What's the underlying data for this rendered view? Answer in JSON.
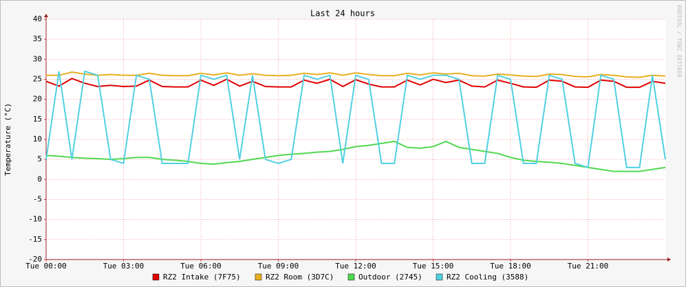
{
  "chart_data": {
    "type": "line",
    "title": "Last 24 hours",
    "y_label": "Temperature (°C)",
    "watermark": "RRDTOOL / TOBI OETIKER",
    "x": [
      0,
      0.5,
      1,
      1.5,
      2,
      2.5,
      3,
      3.5,
      4,
      4.5,
      5,
      5.5,
      6,
      6.5,
      7,
      7.5,
      8,
      8.5,
      9,
      9.5,
      10,
      10.5,
      11,
      11.5,
      12,
      12.5,
      13,
      13.5,
      14,
      14.5,
      15,
      15.5,
      16,
      16.5,
      17,
      17.5,
      18,
      18.5,
      19,
      19.5,
      20,
      20.5,
      21,
      21.5,
      22,
      22.5,
      23,
      23.5,
      24
    ],
    "xlim": [
      0,
      24
    ],
    "xticks": [
      {
        "value": 0,
        "label": "Tue 00:00"
      },
      {
        "value": 3,
        "label": "Tue 03:00"
      },
      {
        "value": 6,
        "label": "Tue 06:00"
      },
      {
        "value": 9,
        "label": "Tue 09:00"
      },
      {
        "value": 12,
        "label": "Tue 12:00"
      },
      {
        "value": 15,
        "label": "Tue 15:00"
      },
      {
        "value": 18,
        "label": "Tue 18:00"
      },
      {
        "value": 21,
        "label": "Tue 21:00"
      }
    ],
    "ylim": [
      -20,
      40
    ],
    "yticks": [
      -20,
      -15,
      -10,
      -5,
      0,
      5,
      10,
      15,
      20,
      25,
      30,
      35,
      40
    ],
    "grid": true,
    "series": [
      {
        "name": "RZ2 Intake (7F75)",
        "color": "#e00000",
        "values": [
          24.5,
          23.3,
          25.2,
          24,
          23.2,
          23.5,
          23.2,
          23.3,
          24.8,
          23.2,
          23.1,
          23.1,
          24.8,
          23.5,
          25,
          23.3,
          24.5,
          23.2,
          23.1,
          23.1,
          24.8,
          24,
          25,
          23.2,
          24.9,
          23.8,
          23.1,
          23.1,
          24.8,
          23.6,
          25,
          24.2,
          24.8,
          23.3,
          23.1,
          24.8,
          24,
          23.1,
          23,
          24.8,
          24.5,
          23.1,
          23,
          24.8,
          24.5,
          23,
          23,
          24.5,
          24
        ]
      },
      {
        "name": "RZ2 Room (3D7C)",
        "color": "#e8b020",
        "values": [
          26,
          26,
          26.8,
          26.3,
          26,
          26.2,
          26,
          26,
          26.5,
          26,
          25.9,
          25.9,
          26.5,
          26.1,
          26.6,
          26,
          26.4,
          26,
          25.9,
          26,
          26.5,
          26.2,
          26.6,
          26,
          26.6,
          26.2,
          25.9,
          25.9,
          26.5,
          26.1,
          26.6,
          26.3,
          26.5,
          25.9,
          25.8,
          26.3,
          26.1,
          25.8,
          25.7,
          26.3,
          26.2,
          25.7,
          25.6,
          26.2,
          26,
          25.6,
          25.5,
          26,
          25.8
        ]
      },
      {
        "name": "Outdoor (2745)",
        "color": "#50d850",
        "values": [
          6,
          5.8,
          5.5,
          5.3,
          5.2,
          5,
          5.2,
          5.5,
          5.5,
          5,
          4.8,
          4.5,
          4,
          3.8,
          4.2,
          4.5,
          5,
          5.5,
          6,
          6.3,
          6.5,
          6.8,
          7,
          7.5,
          8.2,
          8.5,
          9,
          9.5,
          8,
          7.8,
          8.2,
          9.5,
          8,
          7.5,
          7,
          6.5,
          5.5,
          4.8,
          4.5,
          4.3,
          4,
          3.5,
          3,
          2.5,
          2,
          2,
          2,
          2.5,
          3
        ]
      },
      {
        "name": "RZ2 Cooling (3588)",
        "color": "#50d0e0",
        "values": [
          5,
          27,
          5,
          27,
          26,
          5,
          4,
          26,
          25,
          4,
          4,
          4,
          26,
          25,
          26,
          5,
          26,
          5,
          4,
          5,
          26,
          25,
          26,
          4,
          26,
          25,
          4,
          4,
          26,
          25,
          26,
          26,
          25,
          4,
          4,
          26,
          25,
          4,
          4,
          26,
          25,
          4,
          3,
          26,
          25,
          3,
          3,
          26,
          5
        ]
      }
    ]
  }
}
